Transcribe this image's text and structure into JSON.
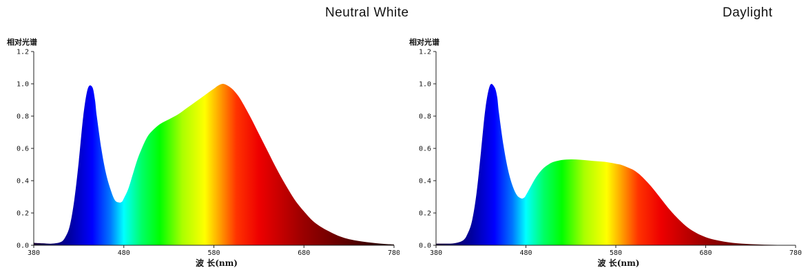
{
  "panels": [
    {
      "title": "Neutral White"
    },
    {
      "title": "Daylight"
    }
  ],
  "chart_data": [
    {
      "type": "area",
      "title": "Neutral White",
      "ylabel": "相对光谱",
      "xlabel": "波 长(nm)",
      "xlim": [
        380,
        780
      ],
      "ylim": [
        0,
        1.2
      ],
      "xticks": [
        380,
        480,
        580,
        680,
        780
      ],
      "yticks": [
        "0.0",
        "0.2",
        "0.4",
        "0.6",
        "0.8",
        "1.0",
        "1.2"
      ],
      "grid": false,
      "x": [
        380,
        390,
        400,
        410,
        415,
        420,
        425,
        430,
        435,
        440,
        445,
        448,
        450,
        455,
        460,
        465,
        470,
        475,
        478,
        480,
        485,
        490,
        495,
        500,
        505,
        510,
        520,
        530,
        540,
        550,
        560,
        570,
        580,
        585,
        590,
        595,
        600,
        605,
        610,
        620,
        630,
        640,
        650,
        660,
        670,
        680,
        690,
        700,
        710,
        720,
        730,
        740,
        750,
        760,
        770,
        780
      ],
      "y": [
        0.015,
        0.012,
        0.01,
        0.02,
        0.05,
        0.12,
        0.28,
        0.52,
        0.8,
        0.97,
        0.98,
        0.9,
        0.8,
        0.6,
        0.45,
        0.35,
        0.28,
        0.265,
        0.27,
        0.29,
        0.35,
        0.44,
        0.53,
        0.6,
        0.66,
        0.7,
        0.75,
        0.78,
        0.81,
        0.85,
        0.89,
        0.93,
        0.97,
        0.99,
        1.0,
        0.99,
        0.97,
        0.94,
        0.9,
        0.8,
        0.69,
        0.58,
        0.47,
        0.37,
        0.28,
        0.21,
        0.15,
        0.11,
        0.08,
        0.055,
        0.038,
        0.027,
        0.019,
        0.013,
        0.008,
        0.005
      ]
    },
    {
      "type": "area",
      "title": "Daylight",
      "ylabel": "相对光谱",
      "xlabel": "波 长(nm)",
      "xlim": [
        380,
        780
      ],
      "ylim": [
        0,
        1.2
      ],
      "xticks": [
        380,
        480,
        580,
        680,
        780
      ],
      "yticks": [
        "0.0",
        "0.2",
        "0.4",
        "0.6",
        "0.8",
        "1.0",
        "1.2"
      ],
      "grid": false,
      "x": [
        380,
        390,
        400,
        410,
        415,
        420,
        425,
        430,
        435,
        440,
        445,
        448,
        450,
        455,
        460,
        465,
        470,
        475,
        478,
        480,
        485,
        490,
        495,
        500,
        505,
        510,
        520,
        530,
        540,
        550,
        560,
        570,
        580,
        585,
        590,
        595,
        600,
        605,
        610,
        620,
        630,
        640,
        650,
        660,
        670,
        680,
        690,
        700,
        710,
        720,
        730,
        740,
        750,
        760,
        770,
        780
      ],
      "y": [
        0.01,
        0.01,
        0.012,
        0.03,
        0.07,
        0.15,
        0.32,
        0.58,
        0.85,
        0.99,
        0.98,
        0.92,
        0.82,
        0.62,
        0.47,
        0.37,
        0.31,
        0.29,
        0.295,
        0.31,
        0.36,
        0.41,
        0.45,
        0.48,
        0.5,
        0.515,
        0.528,
        0.532,
        0.53,
        0.525,
        0.52,
        0.515,
        0.505,
        0.5,
        0.49,
        0.478,
        0.465,
        0.445,
        0.42,
        0.36,
        0.29,
        0.22,
        0.16,
        0.11,
        0.075,
        0.05,
        0.034,
        0.023,
        0.015,
        0.01,
        0.007,
        0.005,
        0.003,
        0.002,
        0.001,
        0.001
      ]
    }
  ],
  "colors": {
    "spectrum_stops": [
      {
        "nm": 380,
        "color": "#1a0033"
      },
      {
        "nm": 420,
        "color": "#0000a0"
      },
      {
        "nm": 445,
        "color": "#0000ff"
      },
      {
        "nm": 465,
        "color": "#0077ff"
      },
      {
        "nm": 480,
        "color": "#00ffff"
      },
      {
        "nm": 500,
        "color": "#00ff66"
      },
      {
        "nm": 520,
        "color": "#00ff00"
      },
      {
        "nm": 545,
        "color": "#aaff00"
      },
      {
        "nm": 570,
        "color": "#ffff00"
      },
      {
        "nm": 585,
        "color": "#ffaa00"
      },
      {
        "nm": 605,
        "color": "#ff3300"
      },
      {
        "nm": 630,
        "color": "#ee0000"
      },
      {
        "nm": 680,
        "color": "#990000"
      },
      {
        "nm": 780,
        "color": "#1a0000"
      }
    ]
  }
}
